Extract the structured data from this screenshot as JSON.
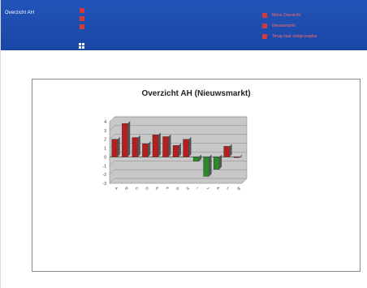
{
  "header": {
    "title": "Overzicht AH",
    "links": [
      "Menu Overzicht",
      "Nieuwsmarkt",
      "Terug naar vorige pagina"
    ]
  },
  "colors": {
    "header_bg": "#1f4db0",
    "accent_red": "#d33a3a",
    "bar_positive": "#b42020",
    "bar_negative": "#2a8a2a",
    "plot_bg": "#c8c8c8"
  },
  "chart_data": {
    "type": "bar",
    "title": "Overzicht AH (Nieuwsmarkt)",
    "categories": [
      "A",
      "B",
      "C",
      "D",
      "E",
      "F",
      "G",
      "H",
      "I",
      "J",
      "K",
      "L",
      "M"
    ],
    "values": [
      2,
      3.8,
      2.2,
      1.5,
      2.5,
      2.3,
      1.3,
      2,
      -0.5,
      -2.2,
      -1.4,
      1.2,
      0
    ],
    "ylim": [
      -3,
      4
    ],
    "yticks": [
      -3,
      -2,
      -1,
      0,
      1,
      2,
      3,
      4
    ]
  }
}
